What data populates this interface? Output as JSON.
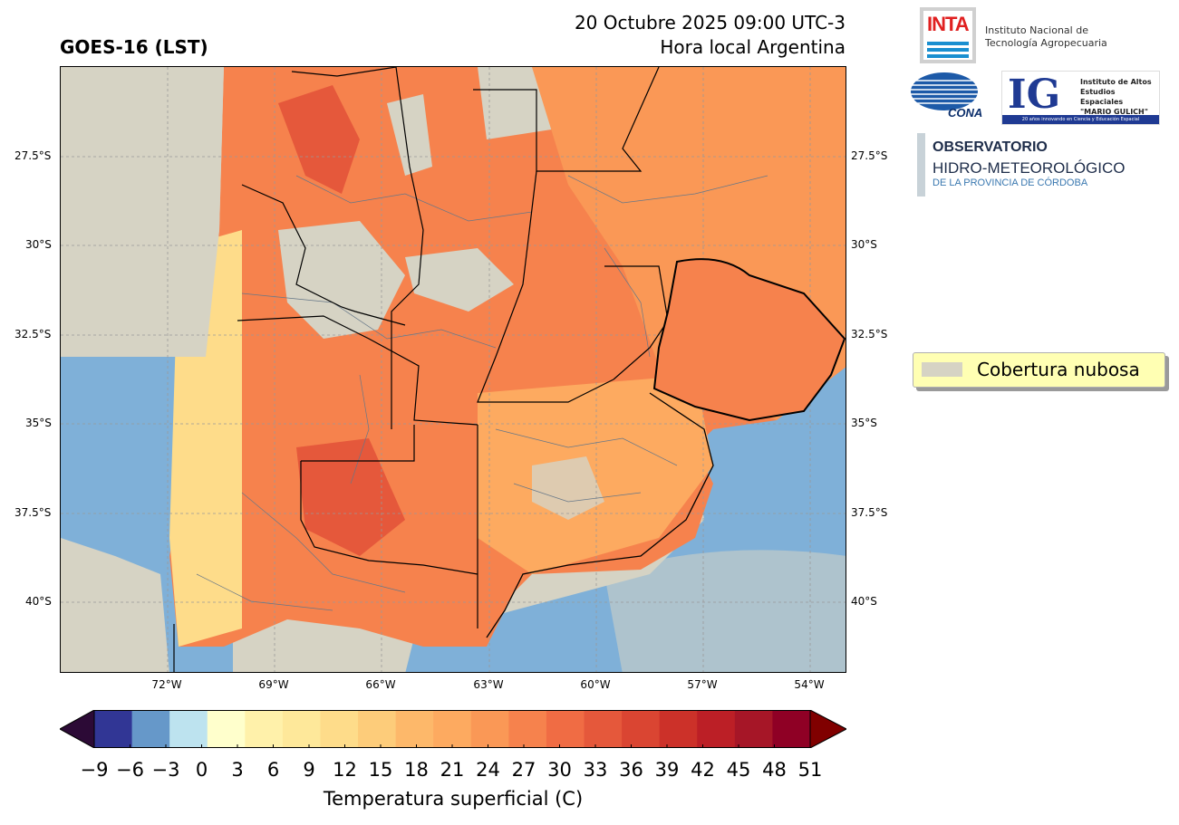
{
  "title_left": "GOES-16 (LST)",
  "title_right_line1": "20 Octubre 2025 09:00 UTC-3",
  "title_right_line2": "Hora local Argentina",
  "lat_labels": [
    "27.5°S",
    "30°S",
    "32.5°S",
    "35°S",
    "37.5°S",
    "40°S"
  ],
  "lon_labels": [
    "72°W",
    "69°W",
    "66°W",
    "63°W",
    "60°W",
    "57°W",
    "54°W"
  ],
  "legend": {
    "label": "Cobertura nubosa",
    "color": "#d6d3c4"
  },
  "colorbar": {
    "title": "Temperatura superficial (C)",
    "ticks": [
      "−9",
      "−6",
      "−3",
      "0",
      "3",
      "6",
      "9",
      "12",
      "15",
      "18",
      "21",
      "24",
      "27",
      "30",
      "33",
      "36",
      "39",
      "42",
      "45",
      "48",
      "51"
    ],
    "colors": [
      "#313695",
      "#6698c9",
      "#bde3ef",
      "#ffffcc",
      "#fff1aa",
      "#fee89a",
      "#fedc8a",
      "#fdcc7a",
      "#fdb86a",
      "#fdaa60",
      "#fa9856",
      "#f6824d",
      "#f06c44",
      "#e5583b",
      "#da4532",
      "#cc3129",
      "#bc1f26",
      "#a61627",
      "#8f0025"
    ],
    "under_color": "#2c0a36",
    "over_color": "#800000"
  },
  "logos": {
    "inta_mark": "INTA",
    "inta_line1": "Instituto Nacional de",
    "inta_line2": "Tecnología Agropecuaria",
    "conae": "CONAE",
    "ig_mark": "IG",
    "ig_line1": "Instituto de Altos",
    "ig_line2": "Estudios Espaciales",
    "ig_line3": "\"MARIO GULICH\"",
    "ig_band": "20 años innovando en Ciencia y Educación Espacial",
    "obs_line1": "OBSERVATORIO",
    "obs_line2": "HIDRO-METEOROLÓGICO",
    "obs_line3": "DE LA PROVINCIA DE CÓRDOBA"
  },
  "colors": {
    "cloud": "#d6d3c4",
    "sea": "#7fb0d8",
    "warm": "#f6824d",
    "mild": "#fdaa60",
    "hot": "#e5583b",
    "cool": "#fedc8a",
    "border": "#000000",
    "dept": "#667788"
  }
}
